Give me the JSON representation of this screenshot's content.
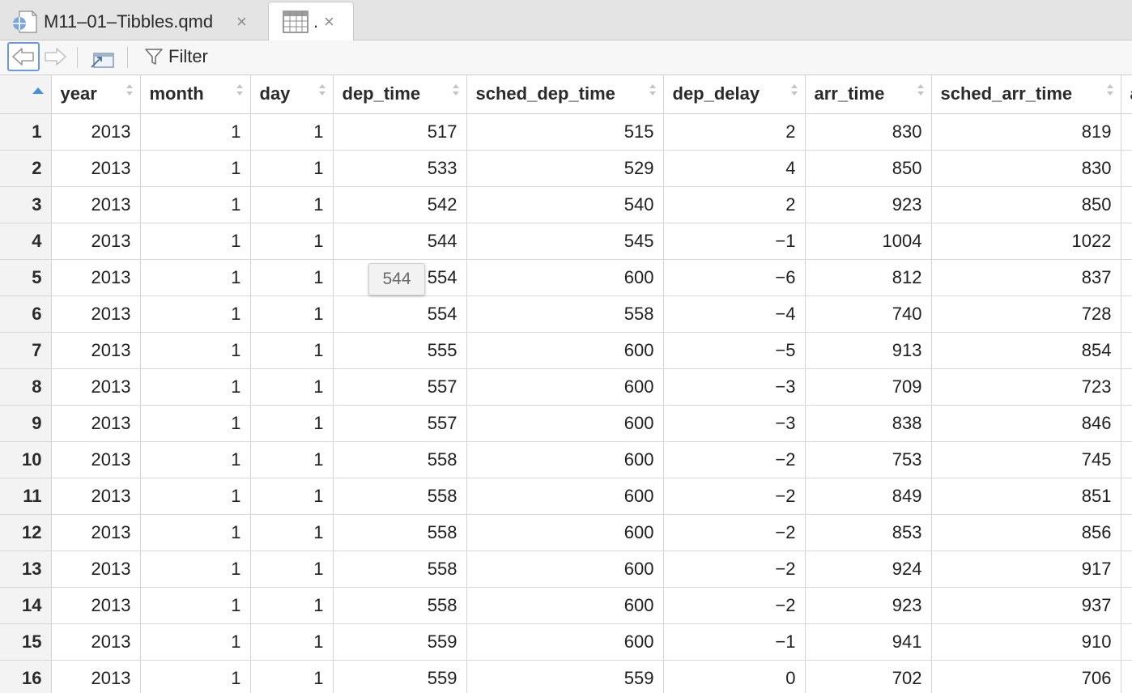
{
  "tabs": [
    {
      "label": "M11–01–Tibbles.qmd",
      "icon": "quarto-document-icon",
      "close": "×"
    },
    {
      "label": ".",
      "icon": "data-grid-icon",
      "close": "×"
    }
  ],
  "toolbar": {
    "filter_label": "Filter"
  },
  "grid": {
    "columns": [
      "year",
      "month",
      "day",
      "dep_time",
      "sched_dep_time",
      "dep_delay",
      "arr_time",
      "sched_arr_time",
      "a"
    ],
    "rows": [
      {
        "n": "1",
        "cells": [
          "2013",
          "1",
          "1",
          "517",
          "515",
          "2",
          "830",
          "819",
          ""
        ]
      },
      {
        "n": "2",
        "cells": [
          "2013",
          "1",
          "1",
          "533",
          "529",
          "4",
          "850",
          "830",
          ""
        ]
      },
      {
        "n": "3",
        "cells": [
          "2013",
          "1",
          "1",
          "542",
          "540",
          "2",
          "923",
          "850",
          ""
        ]
      },
      {
        "n": "4",
        "cells": [
          "2013",
          "1",
          "1",
          "544",
          "545",
          "−1",
          "1004",
          "1022",
          ""
        ]
      },
      {
        "n": "5",
        "cells": [
          "2013",
          "1",
          "1",
          "554",
          "600",
          "−6",
          "812",
          "837",
          ""
        ]
      },
      {
        "n": "6",
        "cells": [
          "2013",
          "1",
          "1",
          "554",
          "558",
          "−4",
          "740",
          "728",
          ""
        ]
      },
      {
        "n": "7",
        "cells": [
          "2013",
          "1",
          "1",
          "555",
          "600",
          "−5",
          "913",
          "854",
          ""
        ]
      },
      {
        "n": "8",
        "cells": [
          "2013",
          "1",
          "1",
          "557",
          "600",
          "−3",
          "709",
          "723",
          ""
        ]
      },
      {
        "n": "9",
        "cells": [
          "2013",
          "1",
          "1",
          "557",
          "600",
          "−3",
          "838",
          "846",
          ""
        ]
      },
      {
        "n": "10",
        "cells": [
          "2013",
          "1",
          "1",
          "558",
          "600",
          "−2",
          "753",
          "745",
          ""
        ]
      },
      {
        "n": "11",
        "cells": [
          "2013",
          "1",
          "1",
          "558",
          "600",
          "−2",
          "849",
          "851",
          ""
        ]
      },
      {
        "n": "12",
        "cells": [
          "2013",
          "1",
          "1",
          "558",
          "600",
          "−2",
          "853",
          "856",
          ""
        ]
      },
      {
        "n": "13",
        "cells": [
          "2013",
          "1",
          "1",
          "558",
          "600",
          "−2",
          "924",
          "917",
          ""
        ]
      },
      {
        "n": "14",
        "cells": [
          "2013",
          "1",
          "1",
          "558",
          "600",
          "−2",
          "923",
          "937",
          ""
        ]
      },
      {
        "n": "15",
        "cells": [
          "2013",
          "1",
          "1",
          "559",
          "600",
          "−1",
          "941",
          "910",
          ""
        ]
      },
      {
        "n": "16",
        "cells": [
          "2013",
          "1",
          "1",
          "559",
          "559",
          "0",
          "702",
          "706",
          ""
        ]
      }
    ]
  },
  "tooltip": {
    "text": "544"
  }
}
